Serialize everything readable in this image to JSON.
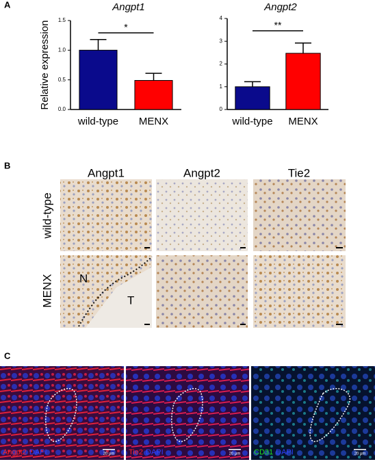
{
  "panel_labels": [
    "A",
    "B",
    "C"
  ],
  "chart_data": [
    {
      "type": "bar",
      "title": "Angpt1",
      "y_label": "Relative expression",
      "categories": [
        "wild-type",
        "MENX"
      ],
      "values": [
        1.0,
        0.49
      ],
      "errors": [
        0.18,
        0.12
      ],
      "colors": [
        "#0a0a8c",
        "#ff0000"
      ],
      "significance": "*",
      "ylim": [
        0,
        1.5
      ],
      "yticks": [
        {
          "value": 0,
          "label": "0.0"
        },
        0.5,
        {
          "value": 1,
          "label": "1.0"
        },
        1.5
      ]
    },
    {
      "type": "bar",
      "title": "Angpt2",
      "categories": [
        "wild-type",
        "MENX"
      ],
      "values": [
        1.0,
        2.47
      ],
      "errors": [
        0.22,
        0.45
      ],
      "colors": [
        "#0a0a8c",
        "#ff0000"
      ],
      "significance": "**",
      "ylim": [
        0,
        4
      ],
      "yticks": [
        0,
        1,
        2,
        3,
        4
      ]
    }
  ],
  "ihc": {
    "columns": [
      "Angpt1",
      "Angpt2",
      "Tie2"
    ],
    "rows": [
      "wild-type",
      "MENX"
    ],
    "annotations": [
      "N",
      "T"
    ]
  },
  "fluorescence": [
    {
      "stain": "Angpt2",
      "counterstain": "DAPI",
      "scale": "20 μm"
    },
    {
      "stain": "Tie2",
      "counterstain": "DAPI",
      "scale": "20 μm"
    },
    {
      "stain": "CD31",
      "counterstain": "DAPI",
      "scale": "20 μm"
    }
  ]
}
